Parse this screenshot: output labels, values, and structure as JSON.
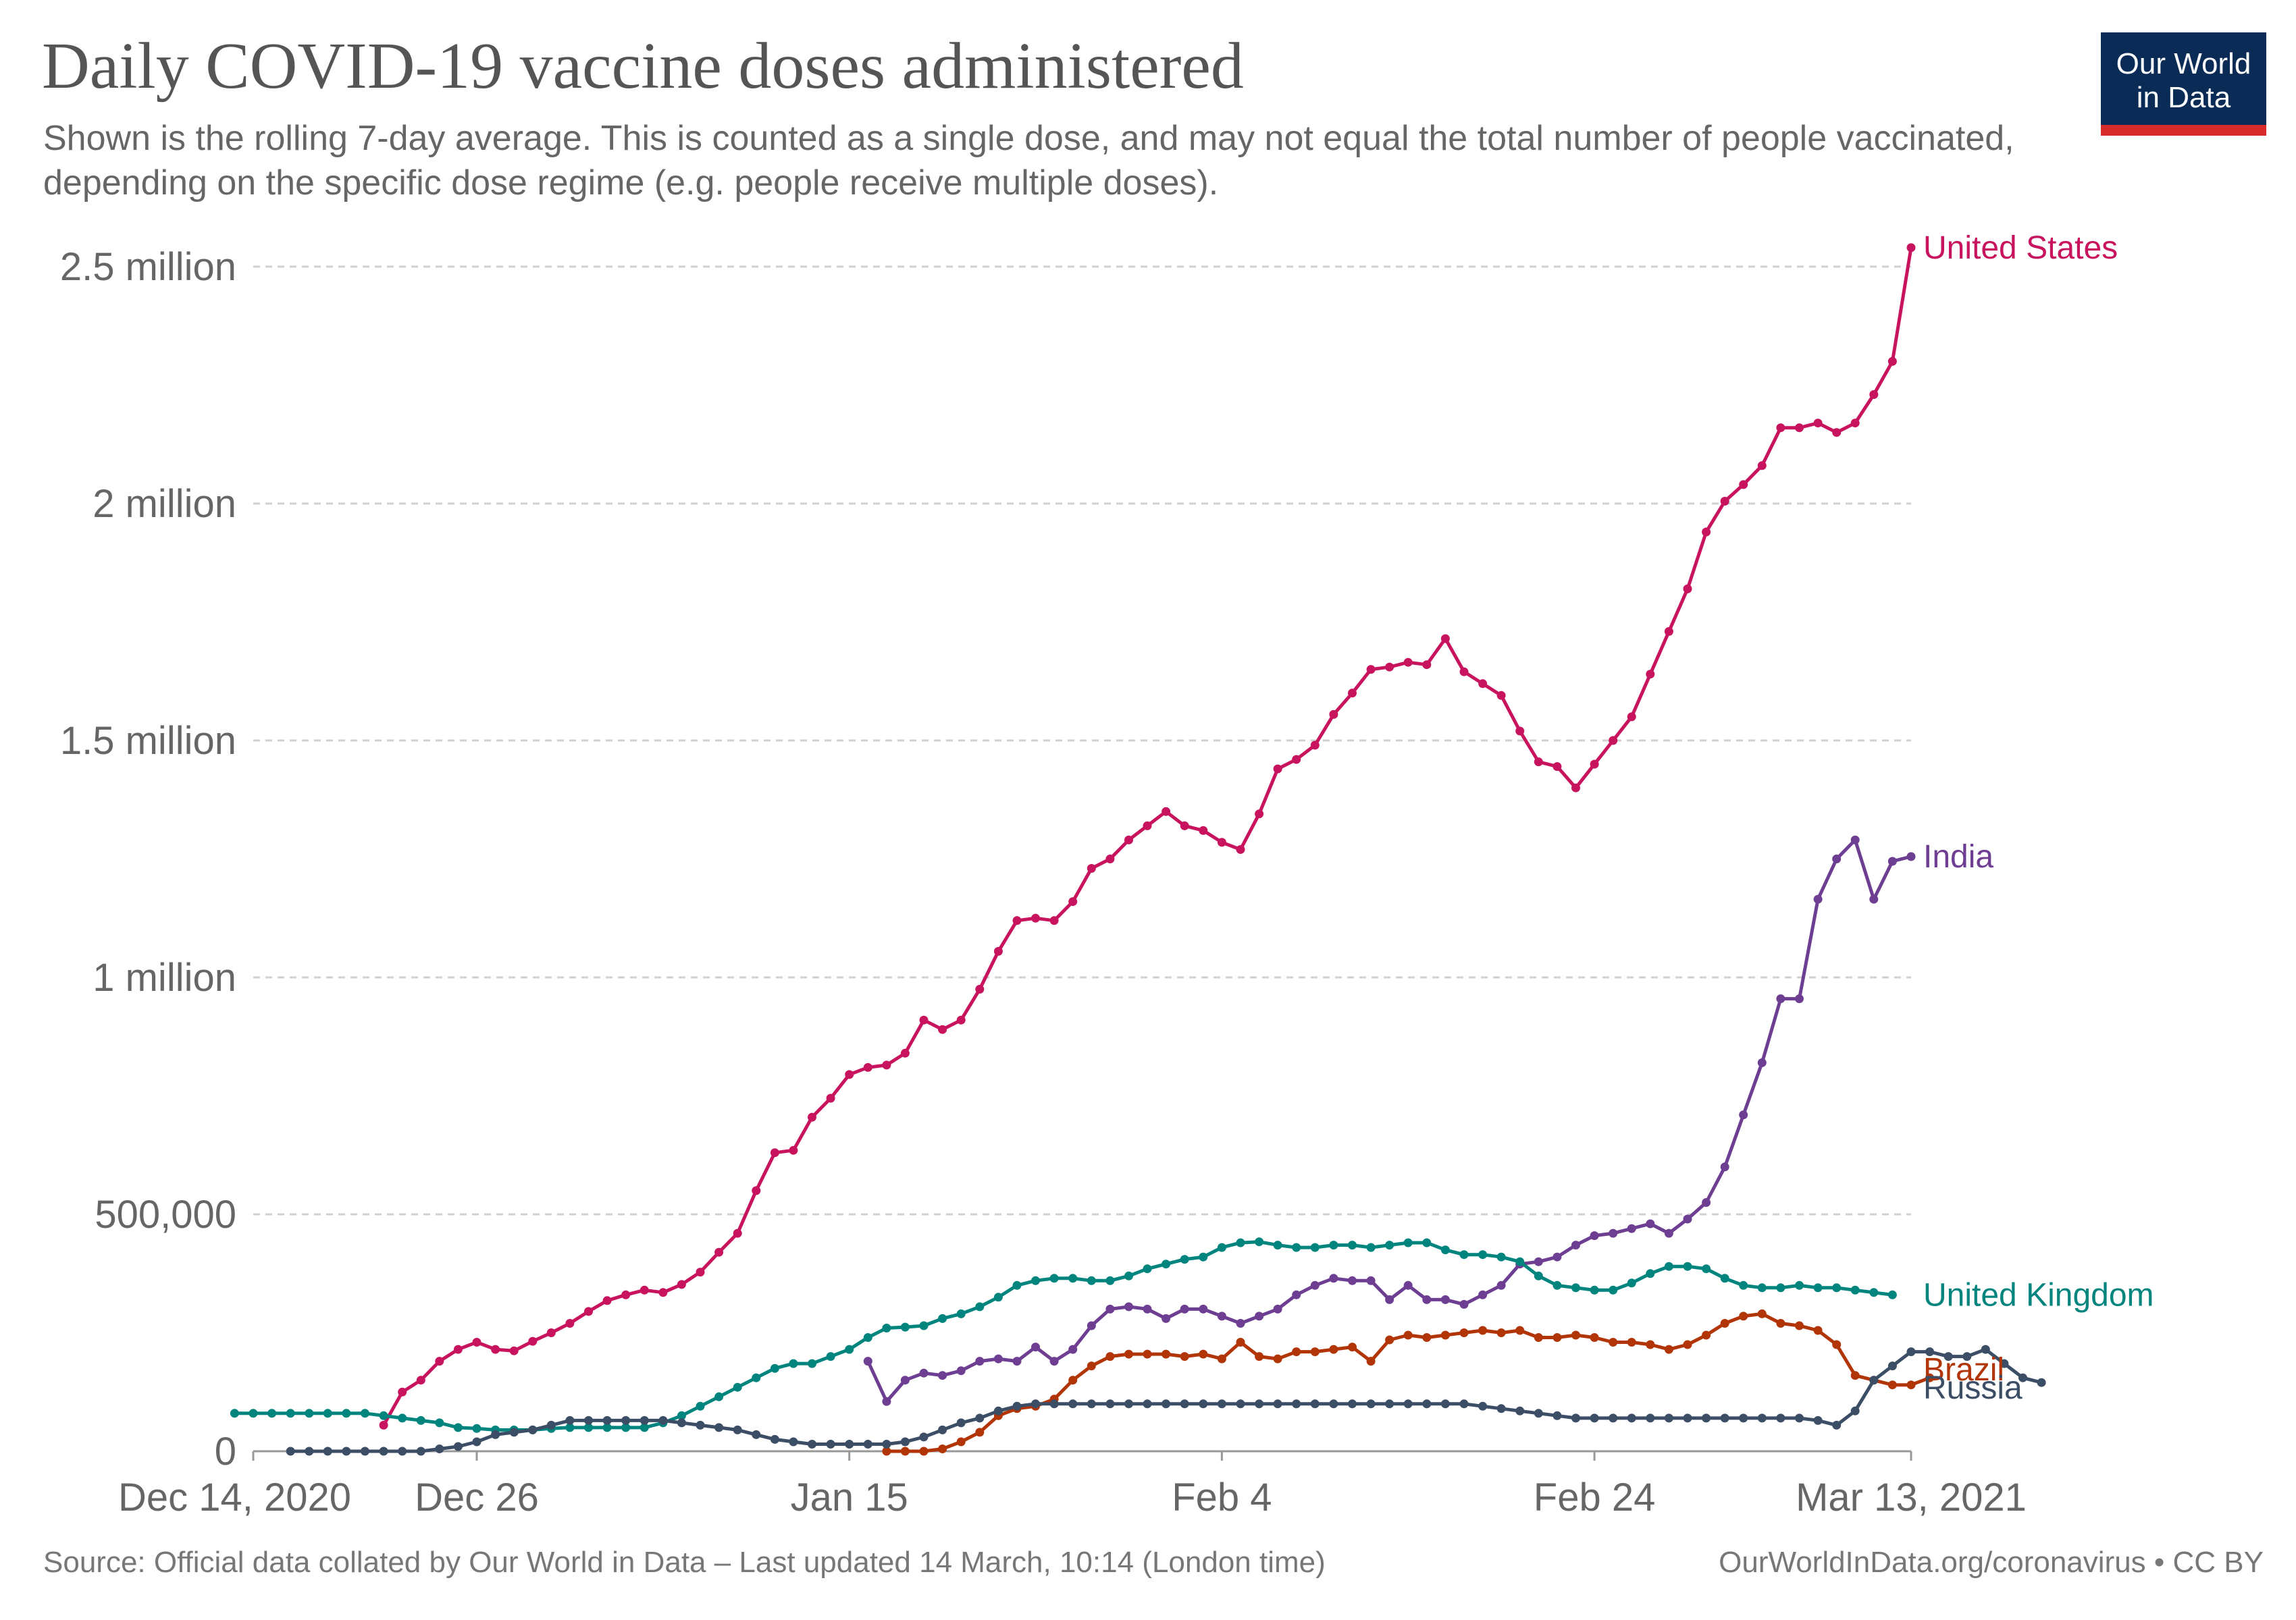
{
  "header": {
    "title": "Daily COVID-19 vaccine doses administered",
    "subtitle": "Shown is the rolling 7-day average. This is counted as a single dose, and may not equal the total number of people vaccinated, depending on the specific dose regime (e.g. people receive multiple doses)."
  },
  "logo": {
    "line1": "Our World",
    "line2": "in Data"
  },
  "footer": {
    "source": "Source: Official data collated by Our World in Data – Last updated 14 March, 10:14 (London time)",
    "credit": "OurWorldInData.org/coronavirus • CC BY"
  },
  "chart_data": {
    "type": "line",
    "title": "Daily COVID-19 vaccine doses administered",
    "xlabel": "",
    "ylabel": "",
    "x_range": [
      "2020-12-14",
      "2021-03-13"
    ],
    "ylim": [
      0,
      2500000
    ],
    "grid": "horizontal dashed",
    "legend": "labels at line ends (right)",
    "y_ticks": [
      {
        "value": 0,
        "label": "0"
      },
      {
        "value": 500000,
        "label": "500,000"
      },
      {
        "value": 1000000,
        "label": "1 million"
      },
      {
        "value": 1500000,
        "label": "1.5 million"
      },
      {
        "value": 2000000,
        "label": "2 million"
      },
      {
        "value": 2500000,
        "label": "2.5 million"
      }
    ],
    "x_ticks": [
      {
        "date": "2020-12-14",
        "label": "Dec 14, 2020"
      },
      {
        "date": "2020-12-26",
        "label": "Dec 26"
      },
      {
        "date": "2021-01-15",
        "label": "Jan 15"
      },
      {
        "date": "2021-02-04",
        "label": "Feb 4"
      },
      {
        "date": "2021-02-24",
        "label": "Feb 24"
      },
      {
        "date": "2021-03-13",
        "label": "Mar 13, 2021"
      }
    ],
    "series": [
      {
        "name": "United States",
        "color": "#c8145f",
        "start": "2020-12-21",
        "values": [
          55000,
          125000,
          150000,
          190000,
          215000,
          230000,
          215000,
          212000,
          232000,
          250000,
          270000,
          295000,
          318000,
          330000,
          340000,
          335000,
          352000,
          378000,
          420000,
          460000,
          550000,
          630000,
          635000,
          705000,
          745000,
          795000,
          810000,
          815000,
          840000,
          910000,
          890000,
          910000,
          975000,
          1055000,
          1120000,
          1125000,
          1120000,
          1160000,
          1230000,
          1250000,
          1290000,
          1320000,
          1350000,
          1320000,
          1310000,
          1285000,
          1270000,
          1345000,
          1440000,
          1460000,
          1490000,
          1555000,
          1600000,
          1650000,
          1655000,
          1665000,
          1660000,
          1715000,
          1645000,
          1620000,
          1595000,
          1520000,
          1455000,
          1445000,
          1400000,
          1450000,
          1500000,
          1550000,
          1640000,
          1730000,
          1820000,
          1940000,
          2005000,
          2040000,
          2080000,
          2160000,
          2160000,
          2170000,
          2150000,
          2170000,
          2230000,
          2300000,
          2540000
        ]
      },
      {
        "name": "India",
        "color": "#6d3e91",
        "start": "2021-01-16",
        "values": [
          190000,
          105000,
          150000,
          165000,
          160000,
          170000,
          190000,
          195000,
          190000,
          220000,
          190000,
          215000,
          265000,
          300000,
          305000,
          300000,
          280000,
          300000,
          300000,
          285000,
          270000,
          285000,
          300000,
          330000,
          350000,
          365000,
          360000,
          360000,
          320000,
          350000,
          320000,
          320000,
          310000,
          330000,
          350000,
          395000,
          400000,
          410000,
          435000,
          455000,
          460000,
          470000,
          480000,
          460000,
          490000,
          525000,
          600000,
          710000,
          820000,
          955000,
          955000,
          1165000,
          1250000,
          1290000,
          1165000,
          1245000,
          1255000
        ]
      },
      {
        "name": "United Kingdom",
        "color": "#00847e",
        "start": "2020-12-13",
        "values": [
          80000,
          80000,
          80000,
          80000,
          80000,
          80000,
          80000,
          80000,
          75000,
          70000,
          65000,
          60000,
          50000,
          48000,
          45000,
          45000,
          45000,
          48000,
          50000,
          50000,
          50000,
          50000,
          50000,
          60000,
          75000,
          95000,
          115000,
          135000,
          155000,
          175000,
          185000,
          185000,
          200000,
          215000,
          240000,
          260000,
          262000,
          265000,
          280000,
          290000,
          305000,
          325000,
          350000,
          360000,
          365000,
          365000,
          360000,
          360000,
          370000,
          385000,
          395000,
          405000,
          410000,
          430000,
          440000,
          442000,
          435000,
          430000,
          430000,
          435000,
          435000,
          430000,
          435000,
          440000,
          440000,
          425000,
          415000,
          415000,
          410000,
          400000,
          370000,
          350000,
          345000,
          340000,
          340000,
          355000,
          375000,
          390000,
          390000,
          385000,
          365000,
          350000,
          345000,
          345000,
          350000,
          345000,
          345000,
          340000,
          335000,
          330000
        ]
      },
      {
        "name": "Brazil",
        "color": "#b13507",
        "start": "2021-01-17",
        "values": [
          0,
          0,
          0,
          5000,
          20000,
          40000,
          75000,
          90000,
          95000,
          110000,
          150000,
          180000,
          200000,
          205000,
          205000,
          205000,
          200000,
          205000,
          195000,
          230000,
          200000,
          195000,
          210000,
          210000,
          215000,
          220000,
          190000,
          235000,
          245000,
          240000,
          245000,
          250000,
          255000,
          250000,
          255000,
          240000,
          240000,
          245000,
          240000,
          230000,
          230000,
          225000,
          215000,
          225000,
          245000,
          270000,
          285000,
          290000,
          270000,
          265000,
          255000,
          225000,
          160000,
          150000,
          140000,
          140000,
          155000
        ]
      },
      {
        "name": "Russia",
        "color": "#3c4e66",
        "start": "2020-12-16",
        "values": [
          0,
          0,
          0,
          0,
          0,
          0,
          0,
          0,
          5000,
          10000,
          20000,
          35000,
          40000,
          45000,
          55000,
          65000,
          65000,
          65000,
          65000,
          65000,
          65000,
          60000,
          55000,
          50000,
          45000,
          35000,
          25000,
          20000,
          15000,
          15000,
          15000,
          15000,
          15000,
          20000,
          30000,
          45000,
          60000,
          70000,
          85000,
          95000,
          100000,
          100000,
          100000,
          100000,
          100000,
          100000,
          100000,
          100000,
          100000,
          100000,
          100000,
          100000,
          100000,
          100000,
          100000,
          100000,
          100000,
          100000,
          100000,
          100000,
          100000,
          100000,
          100000,
          100000,
          95000,
          90000,
          85000,
          80000,
          75000,
          70000,
          70000,
          70000,
          70000,
          70000,
          70000,
          70000,
          70000,
          70000,
          70000,
          70000,
          70000,
          70000,
          65000,
          55000,
          85000,
          150000,
          180000,
          210000,
          210000,
          200000,
          200000,
          215000,
          185000,
          155000,
          145000
        ]
      }
    ]
  }
}
